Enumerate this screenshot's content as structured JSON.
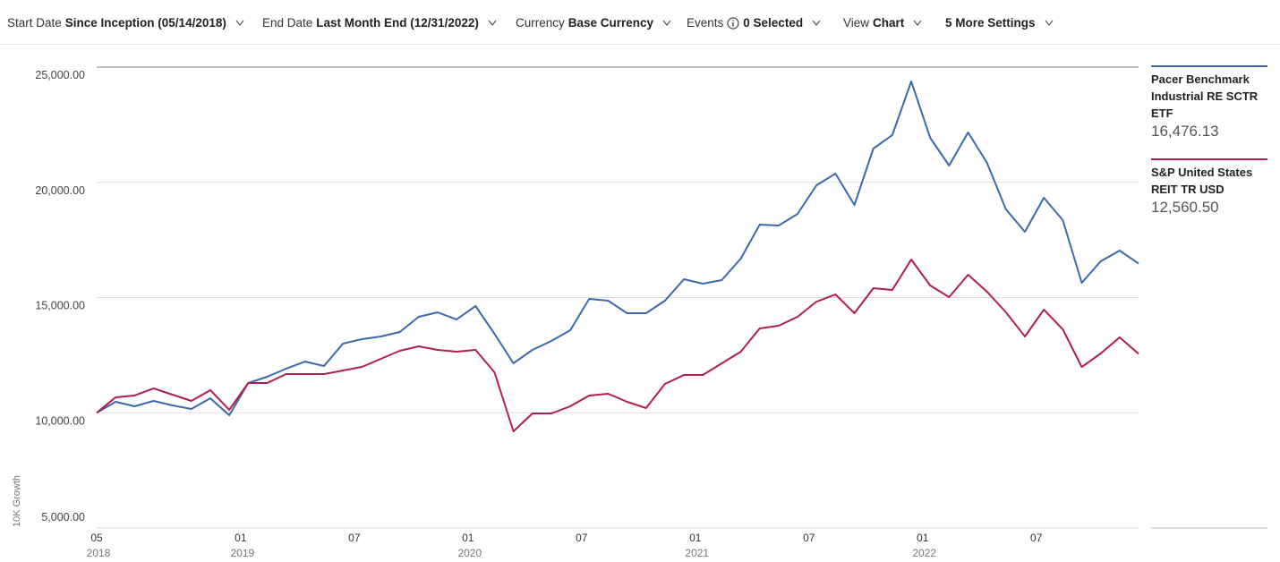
{
  "toolbar": [
    {
      "label": "Start Date",
      "value": "Since Inception (05/14/2018)"
    },
    {
      "label": "End Date",
      "value": "Last Month End (12/31/2022)"
    },
    {
      "label": "Currency",
      "value": "Base Currency"
    },
    {
      "label": "Events",
      "icon": "info",
      "value": "0 Selected"
    },
    {
      "label": "View",
      "value": "Chart"
    },
    {
      "value": "5 More Settings"
    }
  ],
  "chart_data": {
    "type": "line",
    "ylabel": "10K Growth",
    "x": [
      "2018-05",
      "2018-06",
      "2018-07",
      "2018-08",
      "2018-09",
      "2018-10",
      "2018-11",
      "2018-12",
      "2019-01",
      "2019-02",
      "2019-03",
      "2019-04",
      "2019-05",
      "2019-06",
      "2019-07",
      "2019-08",
      "2019-09",
      "2019-10",
      "2019-11",
      "2019-12",
      "2020-01",
      "2020-02",
      "2020-03",
      "2020-04",
      "2020-05",
      "2020-06",
      "2020-07",
      "2020-08",
      "2020-09",
      "2020-10",
      "2020-11",
      "2020-12",
      "2021-01",
      "2021-02",
      "2021-03",
      "2021-04",
      "2021-05",
      "2021-06",
      "2021-07",
      "2021-08",
      "2021-09",
      "2021-10",
      "2021-11",
      "2021-12",
      "2022-01",
      "2022-02",
      "2022-03",
      "2022-04",
      "2022-05",
      "2022-06",
      "2022-07",
      "2022-08",
      "2022-09",
      "2022-10",
      "2022-11",
      "2022-12"
    ],
    "xticks": [
      {
        "value": "2018-05",
        "label": "05",
        "year": "2018"
      },
      {
        "value": "2019-01",
        "label": "01",
        "year": "2019"
      },
      {
        "value": "2019-07",
        "label": "07"
      },
      {
        "value": "2020-01",
        "label": "01",
        "year": "2020"
      },
      {
        "value": "2020-07",
        "label": "07"
      },
      {
        "value": "2021-01",
        "label": "01",
        "year": "2021"
      },
      {
        "value": "2021-07",
        "label": "07"
      },
      {
        "value": "2022-01",
        "label": "01",
        "year": "2022"
      },
      {
        "value": "2022-07",
        "label": "07"
      }
    ],
    "ylim": [
      5000,
      25000
    ],
    "yticks": [
      {
        "value": 5000,
        "label": "5,000.00"
      },
      {
        "value": 10000,
        "label": "10,000.00"
      },
      {
        "value": 15000,
        "label": "15,000.00"
      },
      {
        "value": 20000,
        "label": "20,000.00"
      },
      {
        "value": 25000,
        "label": "25,000.00"
      }
    ],
    "grid": true,
    "series": [
      {
        "name": "Pacer Benchmark Industrial RE SCTR ETF",
        "color": "#3a6aad",
        "last_value_label": "16,476.13",
        "values": [
          10000,
          10476,
          10282,
          10515,
          10320,
          10165,
          10631,
          9893,
          11291,
          11563,
          11913,
          12223,
          12029,
          13000,
          13194,
          13311,
          13505,
          14165,
          14359,
          14049,
          14631,
          13427,
          12146,
          12728,
          13117,
          13583,
          14942,
          14864,
          14320,
          14320,
          14864,
          15796,
          15602,
          15757,
          16689,
          18165,
          18126,
          18631,
          19874,
          20379,
          19019,
          21466,
          22049,
          24379,
          21932,
          20728,
          22165,
          20845,
          18825,
          17854,
          19330,
          18359,
          15641,
          16573,
          17039,
          16476.13
        ]
      },
      {
        "name": "S&P United States REIT TR USD",
        "color": "#b01e4f",
        "last_value_label": "12,560.50",
        "values": [
          10000,
          10670,
          10748,
          11058,
          10786,
          10515,
          10981,
          10126,
          11291,
          11291,
          11680,
          11680,
          11680,
          11835,
          11990,
          12340,
          12689,
          12884,
          12728,
          12650,
          12728,
          11757,
          9194,
          9971,
          9971,
          10282,
          10748,
          10825,
          10476,
          10204,
          11252,
          11641,
          11641,
          12146,
          12650,
          13660,
          13777,
          14165,
          14825,
          15136,
          14320,
          15408,
          15330,
          16650,
          15524,
          15019,
          15990,
          15252,
          14359,
          13311,
          14476,
          13621,
          11990,
          12573,
          13272,
          12560.5
        ]
      }
    ]
  }
}
